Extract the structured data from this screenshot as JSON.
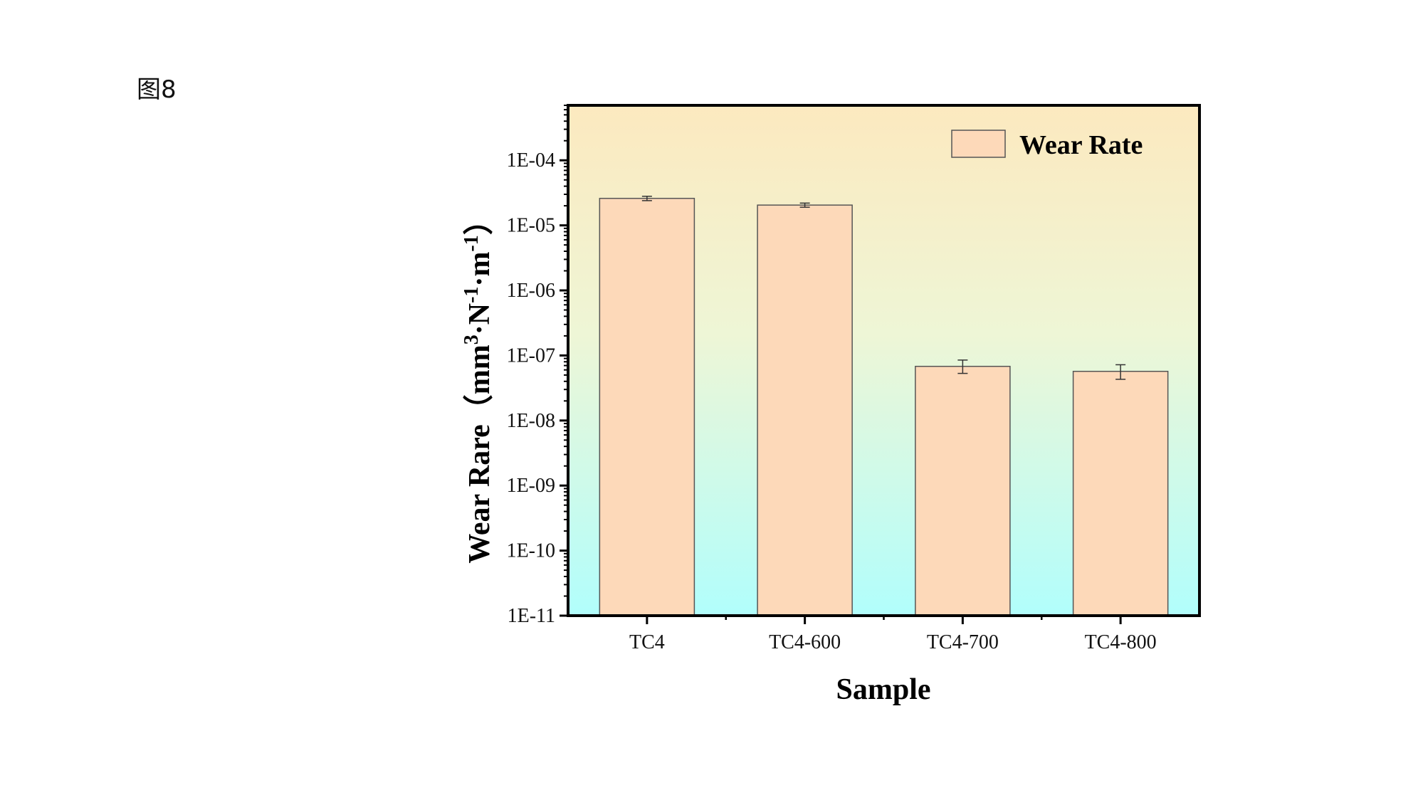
{
  "figure_label": "图8",
  "chart_data": {
    "type": "bar",
    "categories": [
      "TC4",
      "TC4-600",
      "TC4-700",
      "TC4-800"
    ],
    "series": [
      {
        "name": "Wear Rate",
        "values": [
          2.6e-05,
          2.05e-05,
          6.8e-08,
          5.7e-08
        ],
        "error_low": [
          2.4e-05,
          1.9e-05,
          5.3e-08,
          4.3e-08
        ],
        "error_high": [
          2.8e-05,
          2.2e-05,
          8.5e-08,
          7.2e-08
        ],
        "color": "#fdd9b9"
      }
    ],
    "xlabel": "Sample",
    "ylabel": "Wear Rare（mm³·N⁻¹·m⁻¹）",
    "ylabel_parts": {
      "prefix": "Wear Rare（mm",
      "sup1": "3",
      "mid1": "·N",
      "sup2": "-1",
      "mid2": "·m",
      "sup3": "-1",
      "suffix": "）"
    },
    "yscale": "log",
    "ylim": [
      1e-11,
      0.0007
    ],
    "yticks": [
      1e-11,
      1e-10,
      1e-09,
      1e-08,
      1e-07,
      1e-06,
      1e-05,
      0.0001
    ],
    "ytick_labels": [
      "1E-11",
      "1E-10",
      "1E-09",
      "1E-08",
      "1E-07",
      "1E-06",
      "1E-05",
      "1E-04"
    ],
    "legend_position": "top-right",
    "background_gradient": [
      "#fce9bf",
      "#b1fefc"
    ],
    "grid": false
  }
}
